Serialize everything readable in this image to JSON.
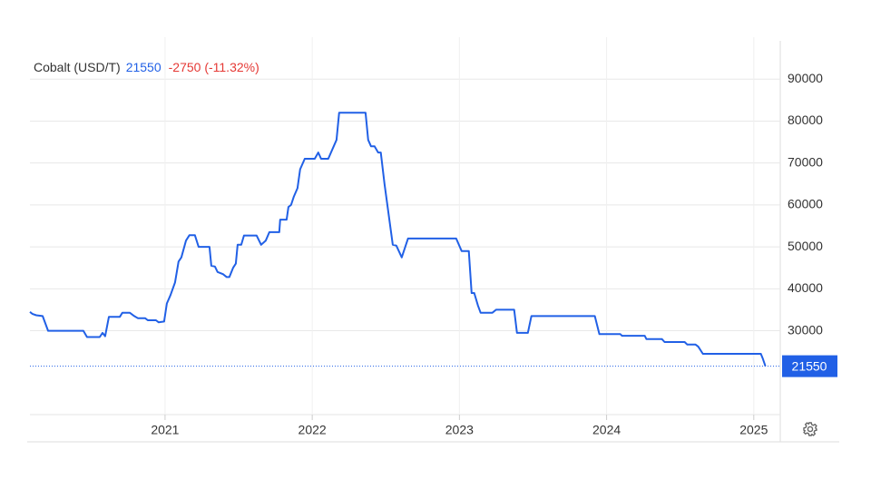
{
  "chart_data": {
    "type": "line",
    "title": "Cobalt (USD/T)",
    "last_price": 21550,
    "change_label": "-2750 (-11.32%)",
    "color": "#2160e6",
    "change_color": "#e53935",
    "grid": true,
    "xlim": [
      2020.082,
      2025.18
    ],
    "xticks": [
      2021,
      2022,
      2023,
      2024,
      2025
    ],
    "ylim": [
      10000,
      100000
    ],
    "yticks": [
      30000,
      40000,
      50000,
      60000,
      70000,
      80000,
      90000
    ],
    "x": [
      2020.082,
      2020.1,
      2020.125,
      2020.168,
      2020.205,
      2020.445,
      2020.47,
      2020.556,
      2020.575,
      2020.593,
      2020.618,
      2020.692,
      2020.71,
      2020.76,
      2020.791,
      2020.815,
      2020.864,
      2020.883,
      2020.938,
      2020.957,
      2020.994,
      2021.012,
      2021.037,
      2021.068,
      2021.092,
      2021.111,
      2021.142,
      2021.166,
      2021.203,
      2021.228,
      2021.302,
      2021.314,
      2021.339,
      2021.357,
      2021.394,
      2021.419,
      2021.437,
      2021.462,
      2021.481,
      2021.493,
      2021.518,
      2021.536,
      2021.622,
      2021.653,
      2021.684,
      2021.709,
      2021.776,
      2021.782,
      2021.826,
      2021.838,
      2021.856,
      2021.875,
      2021.9,
      2021.918,
      2021.949,
      2022.017,
      2022.041,
      2022.06,
      2022.109,
      2022.165,
      2022.183,
      2022.362,
      2022.38,
      2022.399,
      2022.423,
      2022.448,
      2022.466,
      2022.491,
      2022.547,
      2022.571,
      2022.608,
      2022.651,
      2022.978,
      2023.015,
      2023.064,
      2023.083,
      2023.101,
      2023.126,
      2023.144,
      2023.224,
      2023.249,
      2023.372,
      2023.391,
      2023.465,
      2023.489,
      2023.92,
      2023.951,
      2024.093,
      2024.105,
      2024.259,
      2024.271,
      2024.376,
      2024.394,
      2024.53,
      2024.548,
      2024.604,
      2024.623,
      2024.654,
      2025.048,
      2025.06,
      2025.079
    ],
    "values": [
      34500,
      34000,
      33700,
      33500,
      30000,
      30000,
      28500,
      28500,
      29500,
      28700,
      33300,
      33300,
      34300,
      34300,
      33500,
      33000,
      33000,
      32500,
      32500,
      32000,
      32200,
      36500,
      38500,
      41500,
      46500,
      47500,
      51500,
      52800,
      52800,
      50000,
      50000,
      45500,
      45300,
      44000,
      43500,
      42800,
      42800,
      45000,
      46000,
      50500,
      50500,
      52700,
      52700,
      50500,
      51500,
      53500,
      53500,
      56500,
      56500,
      59500,
      60000,
      62000,
      64000,
      68500,
      71000,
      71000,
      72500,
      71000,
      71000,
      75500,
      82000,
      82000,
      75500,
      74000,
      74000,
      72500,
      72500,
      65000,
      50500,
      50300,
      47500,
      52000,
      52000,
      49000,
      49000,
      39000,
      39000,
      36000,
      34300,
      34300,
      35000,
      35000,
      29500,
      29500,
      33500,
      33500,
      29200,
      29200,
      28800,
      28800,
      28000,
      28000,
      27300,
      27300,
      26700,
      26700,
      26200,
      24500,
      24500,
      23500,
      21550
    ]
  }
}
